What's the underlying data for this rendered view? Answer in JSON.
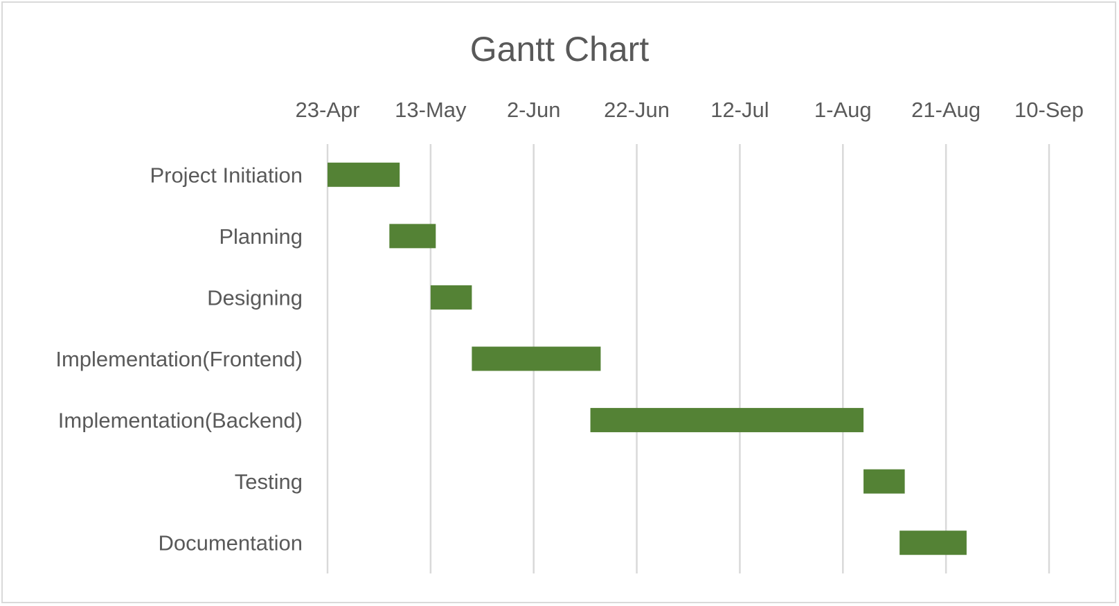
{
  "chart_data": {
    "type": "bar",
    "subtype": "gantt",
    "title": "Gantt Chart",
    "xlabel": "",
    "ylabel": "",
    "x_axis_position": "top",
    "x_ticks": [
      "23-Apr",
      "13-May",
      "2-Jun",
      "22-Jun",
      "12-Jul",
      "1-Aug",
      "21-Aug",
      "10-Sep"
    ],
    "xlim": [
      "2024-04-23",
      "2024-09-10"
    ],
    "grid": true,
    "legend": "none",
    "bar_color": "#548235",
    "categories": [
      "Project Initiation",
      "Planning",
      "Designing",
      "Implementation(Frontend)",
      "Implementation(Backend)",
      "Testing",
      "Documentation"
    ],
    "tasks": [
      {
        "name": "Project Initiation",
        "start": "2024-04-23",
        "end": "2024-05-07"
      },
      {
        "name": "Planning",
        "start": "2024-05-05",
        "end": "2024-05-14"
      },
      {
        "name": "Designing",
        "start": "2024-05-13",
        "end": "2024-05-21"
      },
      {
        "name": "Implementation(Frontend)",
        "start": "2024-05-21",
        "end": "2024-06-15"
      },
      {
        "name": "Implementation(Backend)",
        "start": "2024-06-13",
        "end": "2024-08-05"
      },
      {
        "name": "Testing",
        "start": "2024-08-05",
        "end": "2024-08-13"
      },
      {
        "name": "Documentation",
        "start": "2024-08-12",
        "end": "2024-08-25"
      }
    ]
  }
}
